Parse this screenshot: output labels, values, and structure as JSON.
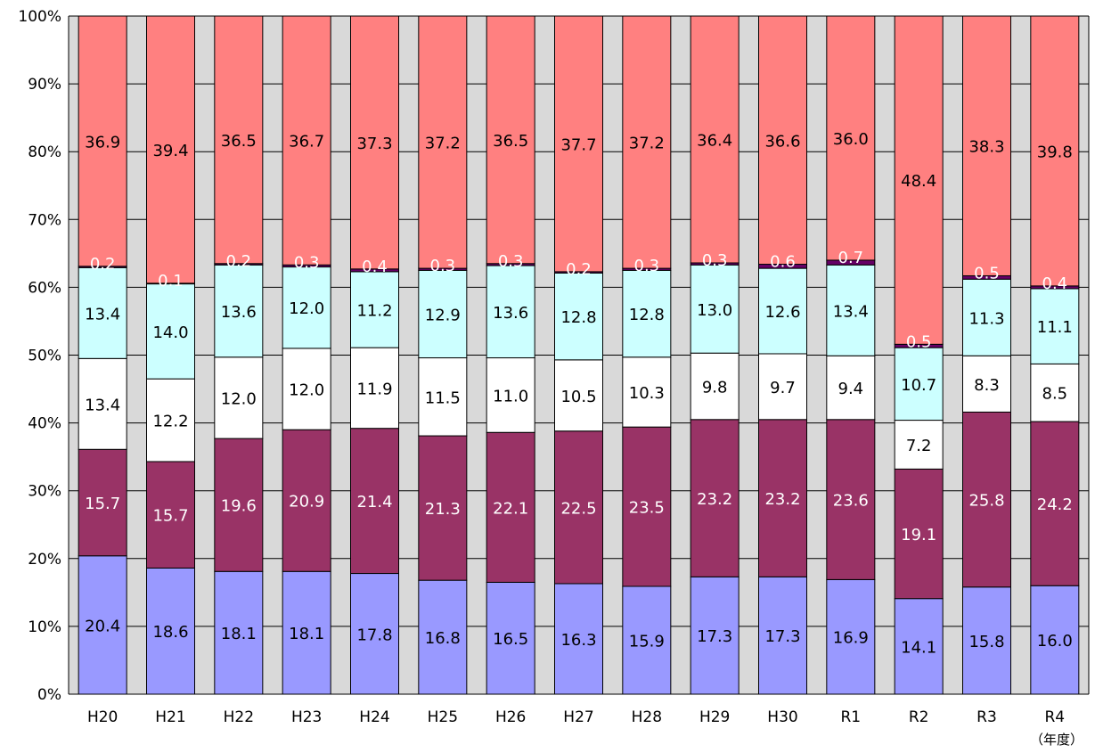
{
  "chart_data": {
    "type": "bar",
    "stacked": "percent",
    "categories": [
      "H20",
      "H21",
      "H22",
      "H23",
      "H24",
      "H25",
      "H26",
      "H27",
      "H28",
      "H29",
      "H30",
      "R1",
      "R2",
      "R3",
      "R4"
    ],
    "x_unit_label": "（年度）",
    "ylim": [
      0,
      100
    ],
    "y_ticks": [
      "0%",
      "10%",
      "20%",
      "30%",
      "40%",
      "50%",
      "60%",
      "70%",
      "80%",
      "90%",
      "100%"
    ],
    "grid": true,
    "legend": "none",
    "series": [
      {
        "color": "#9999ff",
        "label_color": "#000000",
        "values": [
          20.4,
          18.6,
          18.1,
          18.1,
          17.8,
          16.8,
          16.5,
          16.3,
          15.9,
          17.3,
          17.3,
          16.9,
          14.1,
          15.8,
          16.0
        ],
        "labels": [
          "20.4",
          "18.6",
          "18.1",
          "18.1",
          "17.8",
          "16.8",
          "16.5",
          "16.3",
          "15.9",
          "17.3",
          "17.3",
          "16.9",
          "14.1",
          "15.8",
          "16.0"
        ]
      },
      {
        "color": "#993366",
        "label_color": "#ffffff",
        "values": [
          15.7,
          15.7,
          19.6,
          20.9,
          21.4,
          21.3,
          22.1,
          22.5,
          23.5,
          23.2,
          23.2,
          23.6,
          19.1,
          25.8,
          24.2
        ],
        "labels": [
          "15.7",
          "15.7",
          "19.6",
          "20.9",
          "21.4",
          "21.3",
          "22.1",
          "22.5",
          "23.5",
          "23.2",
          "23.2",
          "23.6",
          "19.1",
          "25.8",
          "24.2"
        ]
      },
      {
        "color": "#ffffff",
        "label_color": "#000000",
        "values": [
          13.4,
          12.2,
          12.0,
          12.0,
          11.9,
          11.5,
          11.0,
          10.5,
          10.3,
          9.8,
          9.7,
          9.4,
          7.2,
          8.3,
          8.5
        ],
        "labels": [
          "13.4",
          "12.2",
          "12.0",
          "12.0",
          "11.9",
          "11.5",
          "11.0",
          "10.5",
          "10.3",
          "9.8",
          "9.7",
          "9.4",
          "7.2",
          "8.3",
          "8.5"
        ]
      },
      {
        "color": "#ccffff",
        "label_color": "#000000",
        "values": [
          13.4,
          14.0,
          13.6,
          12.0,
          11.2,
          12.9,
          13.6,
          12.8,
          12.8,
          13.0,
          12.6,
          13.4,
          10.7,
          11.3,
          11.1
        ],
        "labels": [
          "13.4",
          "14.0",
          "13.6",
          "12.0",
          "11.2",
          "12.9",
          "13.6",
          "12.8",
          "12.8",
          "13.0",
          "12.6",
          "13.4",
          "10.7",
          "11.3",
          "11.1"
        ]
      },
      {
        "color": "#660066",
        "label_color": "#ffffff",
        "values": [
          0.2,
          0.1,
          0.2,
          0.3,
          0.4,
          0.3,
          0.3,
          0.2,
          0.3,
          0.3,
          0.6,
          0.7,
          0.5,
          0.5,
          0.4
        ],
        "labels": [
          "0.2",
          "0.1",
          "0.2",
          "0.3",
          "0.4",
          "0.3",
          "0.3",
          "0.2",
          "0.3",
          "0.3",
          "0.6",
          "0.7",
          "0.5",
          "0.5",
          "0.4"
        ]
      },
      {
        "color": "#ff8080",
        "label_color": "#000000",
        "values": [
          36.9,
          39.4,
          36.5,
          36.7,
          37.3,
          37.2,
          36.5,
          37.7,
          37.2,
          36.4,
          36.6,
          36.0,
          48.4,
          38.3,
          39.8
        ],
        "labels": [
          "36.9",
          "39.4",
          "36.5",
          "36.7",
          "37.3",
          "37.2",
          "36.5",
          "37.7",
          "37.2",
          "36.4",
          "36.6",
          "36.0",
          "48.4",
          "38.3",
          "39.8"
        ]
      }
    ]
  }
}
